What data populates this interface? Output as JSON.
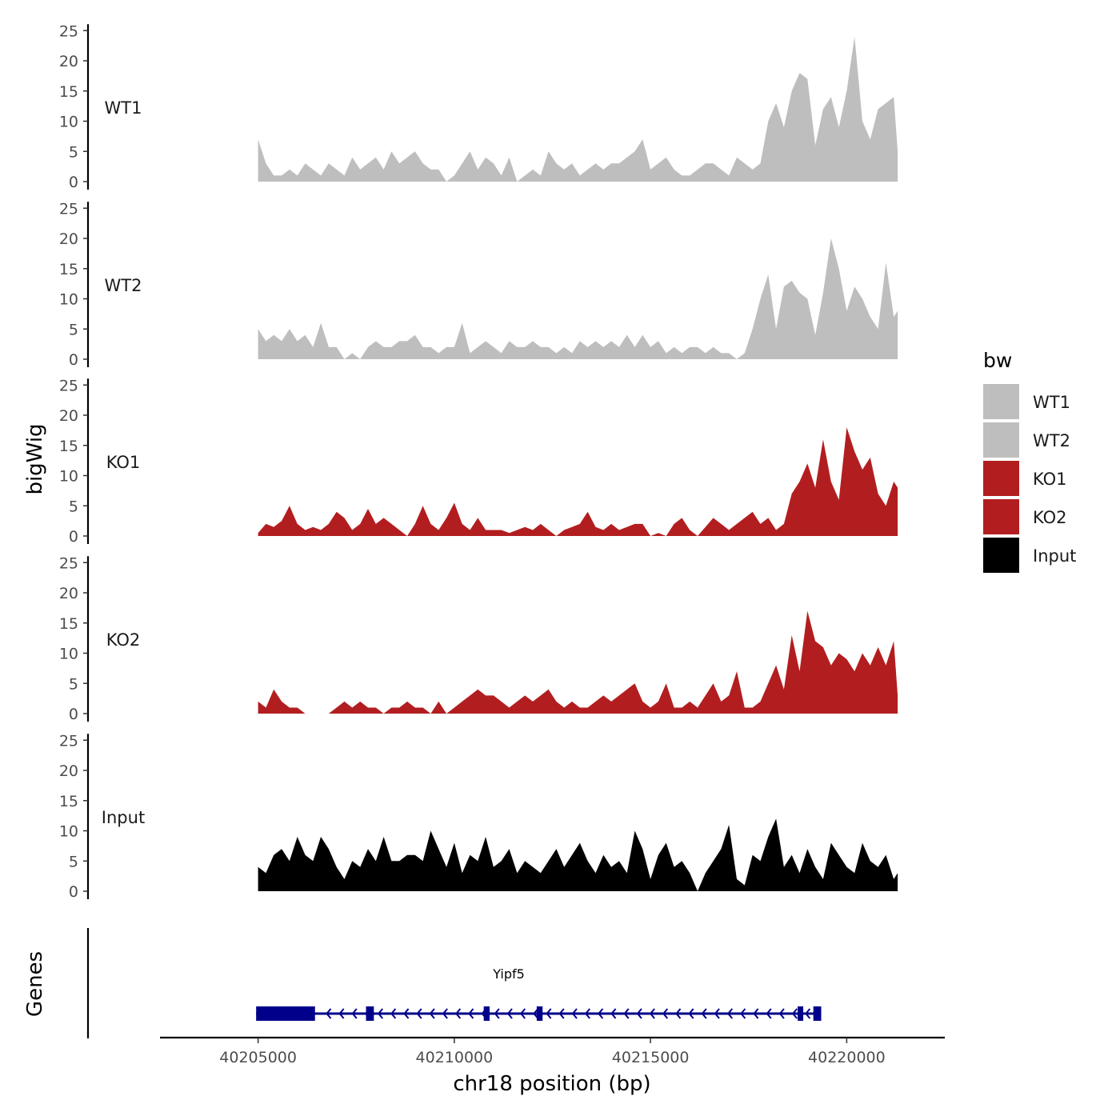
{
  "chart_data": {
    "type": "area",
    "xlabel": "chr18 position (bp)",
    "ylabel": "bigWig",
    "xlim": [
      40202500,
      40222500
    ],
    "ylim": [
      0,
      25
    ],
    "y_ticks": [
      0,
      5,
      10,
      15,
      20,
      25
    ],
    "y_tick_labels": [
      "0",
      "5",
      "10",
      "15",
      "20",
      "25"
    ],
    "x_ticks": [
      40205000,
      40210000,
      40215000,
      40220000
    ],
    "x_tick_labels": [
      "40205000",
      "40210000",
      "40215000",
      "40220000"
    ],
    "gene_panel_label": "Genes",
    "legend": {
      "title": "bw",
      "entries": [
        {
          "label": "WT1",
          "color": "#bebebe"
        },
        {
          "label": "WT2",
          "color": "#bebebe"
        },
        {
          "label": "KO1",
          "color": "#b21e20"
        },
        {
          "label": "KO2",
          "color": "#b21e20"
        },
        {
          "label": "Input",
          "color": "#000000"
        }
      ]
    },
    "tracks": [
      {
        "name": "WT1",
        "color": "#bebebe",
        "x": [
          40205000,
          40205200,
          40205400,
          40205600,
          40205800,
          40206000,
          40206200,
          40206400,
          40206600,
          40206800,
          40207000,
          40207200,
          40207400,
          40207600,
          40207800,
          40208000,
          40208200,
          40208400,
          40208600,
          40208800,
          40209000,
          40209200,
          40209400,
          40209600,
          40209800,
          40210000,
          40210200,
          40210400,
          40210600,
          40210800,
          40211000,
          40211200,
          40211400,
          40211600,
          40211800,
          40212000,
          40212200,
          40212400,
          40212600,
          40212800,
          40213000,
          40213200,
          40213400,
          40213600,
          40213800,
          40214000,
          40214200,
          40214400,
          40214600,
          40214800,
          40215000,
          40215200,
          40215400,
          40215600,
          40215800,
          40216000,
          40216200,
          40216400,
          40216600,
          40216800,
          40217000,
          40217200,
          40217400,
          40217600,
          40217800,
          40218000,
          40218200,
          40218400,
          40218600,
          40218800,
          40219000,
          40219200,
          40219400,
          40219600,
          40219800,
          40220000,
          40220200,
          40220400,
          40220600,
          40220800,
          40221000,
          40221200,
          40221300
        ],
        "values": [
          7,
          3,
          1,
          1,
          2,
          1,
          3,
          2,
          1,
          3,
          2,
          1,
          4,
          2,
          3,
          4,
          2,
          5,
          3,
          4,
          5,
          3,
          2,
          2,
          0,
          1,
          3,
          5,
          2,
          4,
          3,
          1,
          4,
          0,
          1,
          2,
          1,
          5,
          3,
          2,
          3,
          1,
          2,
          3,
          2,
          3,
          3,
          4,
          5,
          7,
          2,
          3,
          4,
          2,
          1,
          1,
          2,
          3,
          3,
          2,
          1,
          4,
          3,
          2,
          3,
          10,
          13,
          9,
          15,
          18,
          17,
          6,
          12,
          14,
          9,
          15,
          24,
          10,
          7,
          12,
          13,
          14,
          5
        ]
      },
      {
        "name": "WT2",
        "color": "#bebebe",
        "x": [
          40205000,
          40205200,
          40205400,
          40205600,
          40205800,
          40206000,
          40206200,
          40206400,
          40206600,
          40206800,
          40207000,
          40207200,
          40207400,
          40207600,
          40207800,
          40208000,
          40208200,
          40208400,
          40208600,
          40208800,
          40209000,
          40209200,
          40209400,
          40209600,
          40209800,
          40210000,
          40210200,
          40210400,
          40210600,
          40210800,
          40211000,
          40211200,
          40211400,
          40211600,
          40211800,
          40212000,
          40212200,
          40212400,
          40212600,
          40212800,
          40213000,
          40213200,
          40213400,
          40213600,
          40213800,
          40214000,
          40214200,
          40214400,
          40214600,
          40214800,
          40215000,
          40215200,
          40215400,
          40215600,
          40215800,
          40216000,
          40216200,
          40216400,
          40216600,
          40216800,
          40217000,
          40217200,
          40217400,
          40217600,
          40217800,
          40218000,
          40218200,
          40218400,
          40218600,
          40218800,
          40219000,
          40219200,
          40219400,
          40219600,
          40219800,
          40220000,
          40220200,
          40220400,
          40220600,
          40220800,
          40221000,
          40221200,
          40221300
        ],
        "values": [
          5,
          3,
          4,
          3,
          5,
          3,
          4,
          2,
          6,
          2,
          2,
          0,
          1,
          0,
          2,
          3,
          2,
          2,
          3,
          3,
          4,
          2,
          2,
          1,
          2,
          2,
          6,
          1,
          2,
          3,
          2,
          1,
          3,
          2,
          2,
          3,
          2,
          2,
          1,
          2,
          1,
          3,
          2,
          3,
          2,
          3,
          2,
          4,
          2,
          4,
          2,
          3,
          1,
          2,
          1,
          2,
          2,
          1,
          2,
          1,
          1,
          0,
          1,
          5,
          10,
          14,
          5,
          12,
          13,
          11,
          10,
          4,
          11,
          20,
          15,
          8,
          12,
          10,
          7,
          5,
          16,
          7,
          8
        ]
      },
      {
        "name": "KO1",
        "color": "#b21e20",
        "x": [
          40205000,
          40205200,
          40205400,
          40205600,
          40205800,
          40206000,
          40206200,
          40206400,
          40206600,
          40206800,
          40207000,
          40207200,
          40207400,
          40207600,
          40207800,
          40208000,
          40208200,
          40208400,
          40208600,
          40208800,
          40209000,
          40209200,
          40209400,
          40209600,
          40209800,
          40210000,
          40210200,
          40210400,
          40210600,
          40210800,
          40211000,
          40211200,
          40211400,
          40211600,
          40211800,
          40212000,
          40212200,
          40212400,
          40212600,
          40212800,
          40213000,
          40213200,
          40213400,
          40213600,
          40213800,
          40214000,
          40214200,
          40214400,
          40214600,
          40214800,
          40215000,
          40215200,
          40215400,
          40215600,
          40215800,
          40216000,
          40216200,
          40216400,
          40216600,
          40216800,
          40217000,
          40217200,
          40217400,
          40217600,
          40217800,
          40218000,
          40218200,
          40218400,
          40218600,
          40218800,
          40219000,
          40219200,
          40219400,
          40219600,
          40219800,
          40220000,
          40220200,
          40220400,
          40220600,
          40220800,
          40221000,
          40221200,
          40221300
        ],
        "values": [
          0.5,
          2,
          1.5,
          2.5,
          5,
          2,
          1,
          1.5,
          1,
          2,
          4,
          3,
          1,
          2,
          4.5,
          2,
          3,
          2,
          1,
          0,
          2,
          5,
          2,
          1,
          3,
          5.5,
          2,
          1,
          3,
          1,
          1,
          1,
          0.5,
          1,
          1.5,
          1,
          2,
          1,
          0,
          1,
          1.5,
          2,
          4,
          1.5,
          1,
          2,
          1,
          1.5,
          2,
          2,
          0,
          0.5,
          0,
          2,
          3,
          1,
          0,
          1.5,
          3,
          2,
          1,
          2,
          3,
          4,
          2,
          3,
          1,
          2,
          7,
          9,
          12,
          8,
          16,
          9,
          6,
          18,
          14,
          11,
          13,
          7,
          5,
          9,
          8
        ]
      },
      {
        "name": "KO2",
        "color": "#b21e20",
        "x": [
          40205000,
          40205200,
          40205400,
          40205600,
          40205800,
          40206000,
          40206200,
          40206400,
          40206600,
          40206800,
          40207000,
          40207200,
          40207400,
          40207600,
          40207800,
          40208000,
          40208200,
          40208400,
          40208600,
          40208800,
          40209000,
          40209200,
          40209400,
          40209600,
          40209800,
          40210000,
          40210200,
          40210400,
          40210600,
          40210800,
          40211000,
          40211200,
          40211400,
          40211600,
          40211800,
          40212000,
          40212200,
          40212400,
          40212600,
          40212800,
          40213000,
          40213200,
          40213400,
          40213600,
          40213800,
          40214000,
          40214200,
          40214400,
          40214600,
          40214800,
          40215000,
          40215200,
          40215400,
          40215600,
          40215800,
          40216000,
          40216200,
          40216400,
          40216600,
          40216800,
          40217000,
          40217200,
          40217400,
          40217600,
          40217800,
          40218000,
          40218200,
          40218400,
          40218600,
          40218800,
          40219000,
          40219200,
          40219400,
          40219600,
          40219800,
          40220000,
          40220200,
          40220400,
          40220600,
          40220800,
          40221000,
          40221200,
          40221300
        ],
        "values": [
          2,
          1,
          4,
          2,
          1,
          1,
          0,
          0,
          0,
          0,
          1,
          2,
          1,
          2,
          1,
          1,
          0,
          1,
          1,
          2,
          1,
          1,
          0,
          2,
          0,
          1,
          2,
          3,
          4,
          3,
          3,
          2,
          1,
          2,
          3,
          2,
          3,
          4,
          2,
          1,
          2,
          1,
          1,
          2,
          3,
          2,
          3,
          4,
          5,
          2,
          1,
          2,
          5,
          1,
          1,
          2,
          1,
          3,
          5,
          2,
          3,
          7,
          1,
          1,
          2,
          5,
          8,
          4,
          13,
          7,
          17,
          12,
          11,
          8,
          10,
          9,
          7,
          10,
          8,
          11,
          8,
          12,
          3
        ]
      },
      {
        "name": "Input",
        "color": "#000000",
        "x": [
          40205000,
          40205200,
          40205400,
          40205600,
          40205800,
          40206000,
          40206200,
          40206400,
          40206600,
          40206800,
          40207000,
          40207200,
          40207400,
          40207600,
          40207800,
          40208000,
          40208200,
          40208400,
          40208600,
          40208800,
          40209000,
          40209200,
          40209400,
          40209600,
          40209800,
          40210000,
          40210200,
          40210400,
          40210600,
          40210800,
          40211000,
          40211200,
          40211400,
          40211600,
          40211800,
          40212000,
          40212200,
          40212400,
          40212600,
          40212800,
          40213000,
          40213200,
          40213400,
          40213600,
          40213800,
          40214000,
          40214200,
          40214400,
          40214600,
          40214800,
          40215000,
          40215200,
          40215400,
          40215600,
          40215800,
          40216000,
          40216200,
          40216400,
          40216600,
          40216800,
          40217000,
          40217200,
          40217400,
          40217600,
          40217800,
          40218000,
          40218200,
          40218400,
          40218600,
          40218800,
          40219000,
          40219200,
          40219400,
          40219600,
          40219800,
          40220000,
          40220200,
          40220400,
          40220600,
          40220800,
          40221000,
          40221200,
          40221300
        ],
        "values": [
          4,
          3,
          6,
          7,
          5,
          9,
          6,
          5,
          9,
          7,
          4,
          2,
          5,
          4,
          7,
          5,
          9,
          5,
          5,
          6,
          6,
          5,
          10,
          7,
          4,
          8,
          3,
          6,
          5,
          9,
          4,
          5,
          7,
          3,
          5,
          4,
          3,
          5,
          7,
          4,
          6,
          8,
          5,
          3,
          6,
          4,
          5,
          3,
          10,
          7,
          2,
          6,
          8,
          4,
          5,
          3,
          0,
          3,
          5,
          7,
          11,
          2,
          1,
          6,
          5,
          9,
          12,
          4,
          6,
          3,
          7,
          4,
          2,
          8,
          6,
          4,
          3,
          8,
          5,
          4,
          6,
          2,
          3
        ]
      }
    ],
    "gene": {
      "name": "Yipf5",
      "start": 40204950,
      "end": 40219350,
      "strand": "-",
      "color": "#00008b",
      "exons": [
        [
          40204950,
          40206450
        ],
        [
          40207750,
          40207950
        ],
        [
          40210750,
          40210900
        ],
        [
          40212100,
          40212250
        ],
        [
          40218750,
          40218850
        ],
        [
          40219150,
          40219350
        ]
      ]
    }
  }
}
